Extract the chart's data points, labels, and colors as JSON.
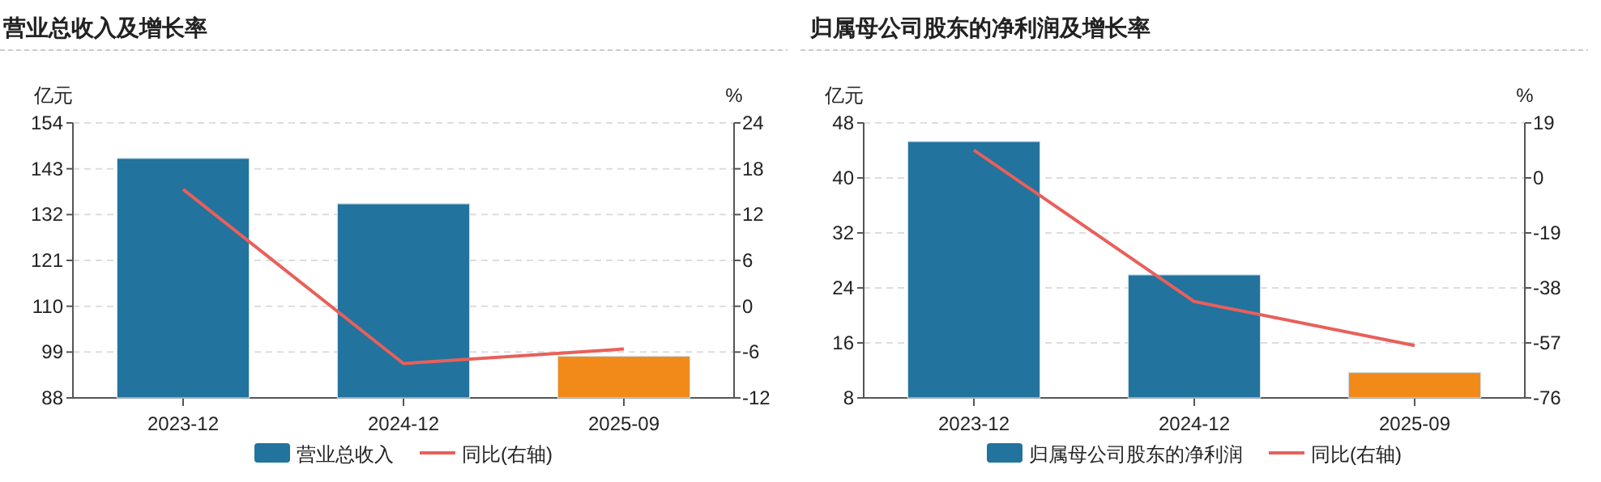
{
  "chart_data": [
    {
      "type": "bar",
      "title": "营业总收入及增长率",
      "ylabel": "亿元",
      "y2label": "%",
      "categories": [
        "2023-12",
        "2024-12",
        "2025-09"
      ],
      "series": [
        {
          "name": "营业总收入",
          "color": "#22739e",
          "colors": [
            "#22739e",
            "#22739e",
            "#f28a1a"
          ],
          "values": [
            145.5,
            134.6,
            98
          ]
        },
        {
          "name": "同比(右轴)",
          "type": "line",
          "axis": "y2",
          "color": "#e8605a",
          "values": [
            15.3,
            -7.5,
            -5.6
          ]
        }
      ],
      "ylim": [
        88,
        154
      ],
      "yticks": [
        88,
        99,
        110,
        121,
        132,
        143,
        154
      ],
      "y2lim": [
        -12,
        24
      ],
      "y2ticks": [
        -12,
        -6,
        0,
        6,
        12,
        18,
        24
      ],
      "grid": "y",
      "legend": "bottom",
      "marker": "none"
    },
    {
      "type": "bar",
      "title": "归属母公司股东的净利润及增长率",
      "ylabel": "亿元",
      "y2label": "%",
      "categories": [
        "2023-12",
        "2024-12",
        "2025-09"
      ],
      "series": [
        {
          "name": "归属母公司股东的净利润",
          "color": "#22739e",
          "colors": [
            "#22739e",
            "#22739e",
            "#f28a1a"
          ],
          "values": [
            45.3,
            25.9,
            11.7
          ]
        },
        {
          "name": "同比(右轴)",
          "type": "line",
          "axis": "y2",
          "color": "#e8605a",
          "values": [
            9.6,
            -42.7,
            -57.9
          ]
        }
      ],
      "ylim": [
        8,
        48
      ],
      "yticks": [
        8,
        16,
        24,
        32,
        40,
        48
      ],
      "y2lim": [
        -76,
        19
      ],
      "y2ticks": [
        -76,
        -57,
        -38,
        -19,
        0,
        19
      ],
      "grid": "y",
      "legend": "bottom",
      "marker": "none"
    }
  ]
}
